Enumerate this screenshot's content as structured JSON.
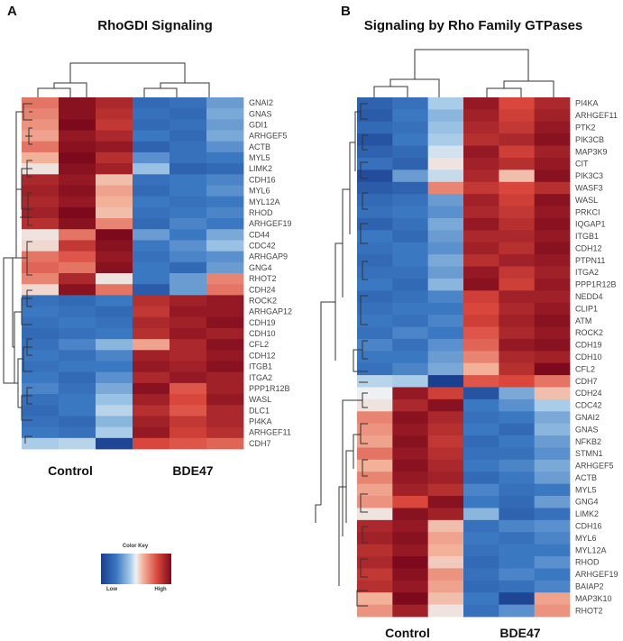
{
  "chart_data": [
    {
      "type": "heatmap",
      "panel": "A",
      "title": "RhoGDI Signaling",
      "columns": [
        "Control",
        "Control",
        "Control",
        "BDE47",
        "BDE47",
        "BDE47"
      ],
      "group_labels": [
        "Control",
        "BDE47"
      ],
      "genes": [
        "GNAI2",
        "GNAS",
        "GDI1",
        "ARHGEF5",
        "ACTB",
        "MYL5",
        "LIMK2",
        "CDH16",
        "MYL6",
        "MYL12A",
        "RHOD",
        "ARHGEF19",
        "CD44",
        "CDC42",
        "ARHGAP9",
        "GNG4",
        "RHOT2",
        "CDH24",
        "ROCK2",
        "ARHGAP12",
        "CDH19",
        "CDH10",
        "CFL2",
        "CDH12",
        "ITGB1",
        "ITGA2",
        "PPP1R12B",
        "WASL",
        "DLC1",
        "PI4KA",
        "ARHGEF11",
        "CDH7"
      ],
      "scale": "z-score, -2 (low) to 2 (high)",
      "values": [
        [
          0.9,
          1.9,
          1.6,
          -1.4,
          -1.3,
          -0.9
        ],
        [
          0.8,
          1.9,
          1.5,
          -1.3,
          -1.4,
          -0.8
        ],
        [
          0.7,
          2.0,
          1.4,
          -1.4,
          -1.3,
          -0.9
        ],
        [
          0.6,
          1.8,
          1.6,
          -1.2,
          -1.4,
          -0.8
        ],
        [
          0.9,
          1.9,
          1.8,
          -1.5,
          -1.3,
          -1.0
        ],
        [
          0.5,
          2.0,
          1.5,
          -1.0,
          -1.3,
          -1.2
        ],
        [
          0.1,
          1.9,
          1.7,
          -0.6,
          -1.5,
          -1.4
        ],
        [
          1.6,
          1.8,
          0.4,
          -1.3,
          -1.2,
          -1.1
        ],
        [
          1.7,
          1.9,
          0.6,
          -1.4,
          -1.2,
          -1.0
        ],
        [
          1.6,
          1.8,
          0.5,
          -1.2,
          -1.3,
          -1.2
        ],
        [
          1.7,
          2.0,
          0.4,
          -1.3,
          -1.2,
          -1.1
        ],
        [
          1.5,
          1.9,
          0.8,
          -1.4,
          -1.1,
          -1.2
        ],
        [
          0.1,
          0.9,
          2.0,
          -0.9,
          -1.2,
          -0.8
        ],
        [
          0.2,
          1.4,
          1.9,
          -1.2,
          -1.0,
          -0.6
        ],
        [
          0.9,
          1.1,
          1.8,
          -1.3,
          -1.1,
          -1.0
        ],
        [
          1.0,
          0.9,
          1.9,
          -1.2,
          -1.4,
          -0.9
        ],
        [
          0.8,
          1.6,
          0.1,
          -1.2,
          -0.9,
          0.8
        ],
        [
          0.2,
          1.9,
          0.9,
          -1.6,
          -0.9,
          0.9
        ],
        [
          -1.3,
          -1.4,
          -1.2,
          1.5,
          1.7,
          1.8
        ],
        [
          -1.2,
          -1.3,
          -1.4,
          1.4,
          1.8,
          1.8
        ],
        [
          -1.3,
          -1.2,
          -1.3,
          1.6,
          1.7,
          1.9
        ],
        [
          -1.4,
          -1.3,
          -1.2,
          1.5,
          1.8,
          1.7
        ],
        [
          -1.3,
          -1.1,
          -0.7,
          0.6,
          1.6,
          1.9
        ],
        [
          -1.2,
          -1.3,
          -1.1,
          1.7,
          1.6,
          1.8
        ],
        [
          -1.3,
          -1.2,
          -1.2,
          1.8,
          1.7,
          1.9
        ],
        [
          -1.2,
          -1.4,
          -1.0,
          1.6,
          1.8,
          1.7
        ],
        [
          -1.1,
          -1.3,
          -0.8,
          1.9,
          1.1,
          1.7
        ],
        [
          -1.3,
          -1.2,
          -0.6,
          1.7,
          1.2,
          1.8
        ],
        [
          -1.4,
          -1.2,
          -0.4,
          1.5,
          1.1,
          1.6
        ],
        [
          -1.3,
          -1.4,
          -0.7,
          1.7,
          1.4,
          1.6
        ],
        [
          -1.2,
          -1.3,
          -0.5,
          1.8,
          1.3,
          1.5
        ],
        [
          -0.5,
          -0.4,
          -1.9,
          1.2,
          1.1,
          1.0
        ]
      ]
    },
    {
      "type": "heatmap",
      "panel": "B",
      "title": "Signaling by Rho Family GTPases",
      "columns": [
        "Control",
        "Control",
        "Control",
        "BDE47",
        "BDE47",
        "BDE47"
      ],
      "group_labels": [
        "Control",
        "BDE47"
      ],
      "genes": [
        "PI4KA",
        "ARHGEF11",
        "PTK2",
        "PIK3CB",
        "MAP3K9",
        "CIT",
        "PIK3C3",
        "WASF3",
        "WASL",
        "PRKCI",
        "IQGAP1",
        "ITGB1",
        "CDH12",
        "PTPN11",
        "ITGA2",
        "PPP1R12B",
        "NEDD4",
        "CLIP1",
        "ATM",
        "ROCK2",
        "CDH19",
        "CDH10",
        "CFL2",
        "CDH7",
        "CDH24",
        "CDC42",
        "GNAI2",
        "GNAS",
        "NFKB2",
        "STMN1",
        "ARHGEF5",
        "ACTB",
        "MYL5",
        "GNG4",
        "LIMK2",
        "CDH16",
        "MYL6",
        "MYL12A",
        "RHOD",
        "ARHGEF19",
        "BAIAP2",
        "MAP3K10",
        "RHOT2"
      ],
      "scale": "z-score, -2 (low) to 2 (high)",
      "values": [
        [
          -1.5,
          -1.3,
          -0.5,
          1.8,
          1.2,
          1.6
        ],
        [
          -1.6,
          -1.2,
          -0.7,
          1.7,
          1.3,
          1.7
        ],
        [
          -1.4,
          -1.3,
          -0.6,
          1.6,
          1.4,
          1.8
        ],
        [
          -1.7,
          -1.2,
          -0.5,
          1.5,
          1.6,
          1.9
        ],
        [
          -1.5,
          -1.4,
          -0.2,
          1.8,
          1.3,
          1.7
        ],
        [
          -1.3,
          -1.5,
          0.1,
          1.7,
          1.5,
          1.8
        ],
        [
          -1.8,
          -0.9,
          -0.3,
          1.6,
          0.4,
          1.9
        ],
        [
          -1.6,
          -1.5,
          0.8,
          1.4,
          1.2,
          1.5
        ],
        [
          -1.4,
          -1.3,
          -0.9,
          1.7,
          1.3,
          1.9
        ],
        [
          -1.3,
          -1.2,
          -1.0,
          1.6,
          1.4,
          1.8
        ],
        [
          -1.5,
          -1.3,
          -0.8,
          1.8,
          1.5,
          1.9
        ],
        [
          -1.2,
          -1.4,
          -0.9,
          1.6,
          1.6,
          1.8
        ],
        [
          -1.3,
          -1.2,
          -1.0,
          1.7,
          1.5,
          1.9
        ],
        [
          -1.4,
          -1.2,
          -0.8,
          1.5,
          1.7,
          1.8
        ],
        [
          -1.3,
          -1.3,
          -0.9,
          1.8,
          1.4,
          1.7
        ],
        [
          -1.2,
          -1.4,
          -0.7,
          1.9,
          1.3,
          1.8
        ],
        [
          -1.4,
          -1.3,
          -1.1,
          1.3,
          1.7,
          1.7
        ],
        [
          -1.3,
          -1.2,
          -1.2,
          1.2,
          1.6,
          1.8
        ],
        [
          -1.2,
          -1.3,
          -1.1,
          1.3,
          1.7,
          1.9
        ],
        [
          -1.3,
          -1.1,
          -1.2,
          1.1,
          1.6,
          1.8
        ],
        [
          -1.1,
          -1.3,
          -1.0,
          1.0,
          1.8,
          1.9
        ],
        [
          -1.2,
          -1.2,
          -0.9,
          0.8,
          1.6,
          1.7
        ],
        [
          -1.3,
          -1.1,
          -0.8,
          0.5,
          1.5,
          2.0
        ],
        [
          -0.4,
          -0.5,
          -2.0,
          1.1,
          1.2,
          0.9
        ],
        [
          0.0,
          1.8,
          1.3,
          -1.7,
          -0.8,
          0.4
        ],
        [
          0.1,
          1.6,
          1.9,
          -1.2,
          -1.0,
          -0.5
        ],
        [
          0.8,
          1.9,
          1.6,
          -1.3,
          -1.2,
          -0.8
        ],
        [
          0.7,
          1.8,
          1.5,
          -1.2,
          -1.4,
          -0.7
        ],
        [
          0.6,
          1.9,
          1.4,
          -1.4,
          -1.2,
          -0.9
        ],
        [
          0.9,
          1.8,
          1.5,
          -1.3,
          -1.3,
          -1.0
        ],
        [
          0.5,
          1.9,
          1.6,
          -1.2,
          -1.1,
          -0.8
        ],
        [
          0.8,
          1.8,
          1.7,
          -1.4,
          -1.2,
          -0.9
        ],
        [
          0.6,
          1.7,
          1.5,
          -1.1,
          -1.3,
          -1.2
        ],
        [
          0.7,
          1.2,
          1.9,
          -1.2,
          -1.4,
          -0.9
        ],
        [
          0.1,
          1.9,
          1.7,
          -0.7,
          -1.5,
          -1.3
        ],
        [
          1.6,
          1.8,
          0.4,
          -1.3,
          -1.1,
          -1.0
        ],
        [
          1.7,
          1.9,
          0.6,
          -1.2,
          -1.3,
          -1.1
        ],
        [
          1.5,
          1.8,
          0.5,
          -1.3,
          -1.2,
          -1.2
        ],
        [
          1.6,
          2.0,
          0.3,
          -1.4,
          -1.2,
          -1.0
        ],
        [
          1.4,
          1.9,
          0.7,
          -1.3,
          -1.1,
          -1.2
        ],
        [
          1.5,
          1.8,
          0.6,
          -1.4,
          -1.3,
          -1.1
        ],
        [
          0.5,
          2.0,
          0.4,
          -1.2,
          -1.9,
          0.6
        ],
        [
          0.7,
          1.7,
          0.1,
          -1.3,
          -1.0,
          0.7
        ]
      ]
    }
  ],
  "labels": {
    "panel_a": "A",
    "panel_b": "B",
    "color_key_title": "Color Key",
    "color_key_low": "Low",
    "color_key_high": "High"
  }
}
